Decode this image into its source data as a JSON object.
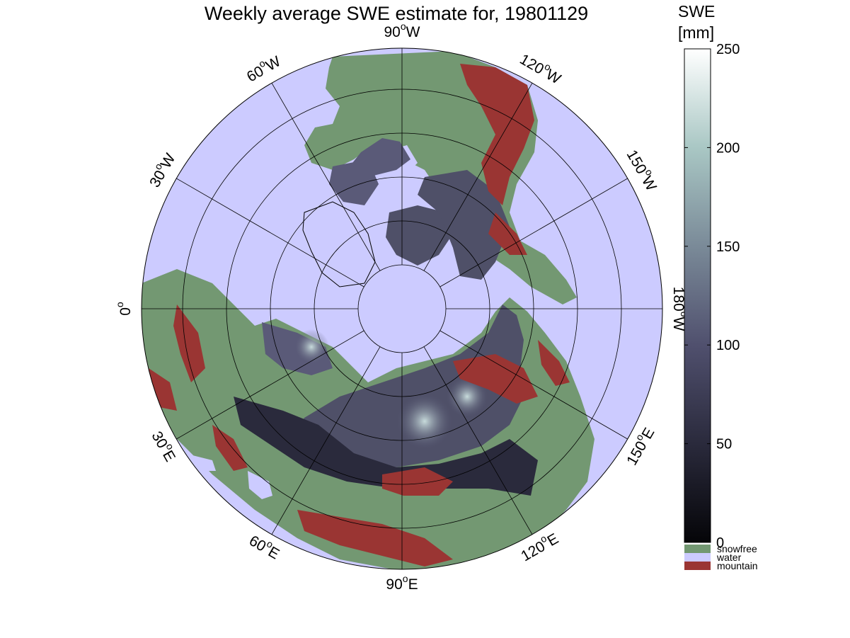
{
  "map": {
    "title": "Weekly average SWE estimate for, 19801129",
    "projection": "north polar stereographic",
    "colors": {
      "water": "#cccbff",
      "snowfree": "#739872",
      "mountain": "#9a3533",
      "coastline": "#000000",
      "graticule": "#000000"
    },
    "longitude_labels": [
      {
        "text": "0",
        "unit": "o",
        "lon": 0
      },
      {
        "text": "30",
        "unit": "oW",
        "lon": 30
      },
      {
        "text": "60",
        "unit": "oW",
        "lon": 60
      },
      {
        "text": "90",
        "unit": "oW",
        "lon": 90
      },
      {
        "text": "120",
        "unit": "oW",
        "lon": 120
      },
      {
        "text": "150",
        "unit": "oW",
        "lon": 150
      },
      {
        "text": "180",
        "unit": "oW",
        "lon": 180
      },
      {
        "text": "150",
        "unit": "oE",
        "lon": 210
      },
      {
        "text": "120",
        "unit": "oE",
        "lon": 240
      },
      {
        "text": "90",
        "unit": "oE",
        "lon": 270
      },
      {
        "text": "60",
        "unit": "oE",
        "lon": 300
      },
      {
        "text": "30",
        "unit": "oE",
        "lon": 330
      }
    ]
  },
  "colorbar": {
    "title_line1": "SWE",
    "title_line2": "[mm]",
    "min": 0,
    "max": 250,
    "ticks": [
      "0",
      "50",
      "100",
      "150",
      "200",
      "250"
    ],
    "tick_values": [
      0,
      50,
      100,
      150,
      200,
      250
    ],
    "categories": [
      {
        "label": "snowfree",
        "color": "#739872"
      },
      {
        "label": "water",
        "color": "#cccbff"
      },
      {
        "label": "mountain",
        "color": "#9a3533"
      }
    ]
  }
}
